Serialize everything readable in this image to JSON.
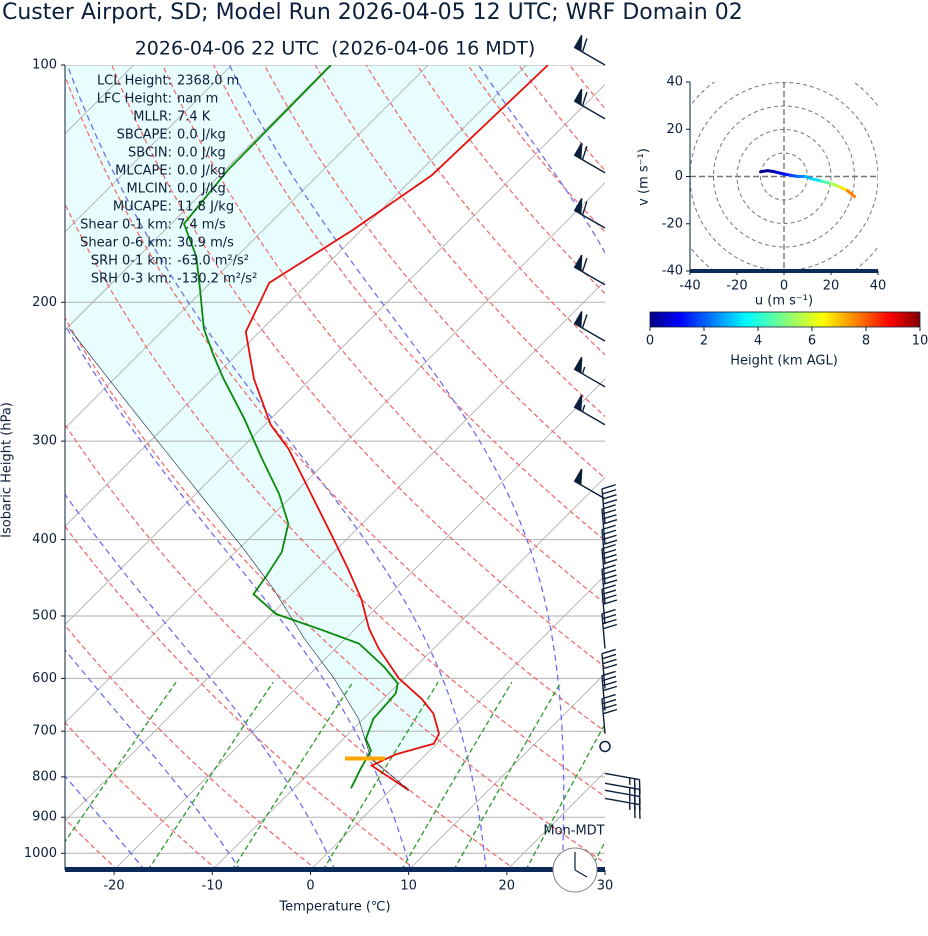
{
  "title": "Custer Airport, SD; Model Run 2026-04-05 12 UTC; WRF Domain 02",
  "chart_data": [
    {
      "type": "skewt",
      "subtitle": "2026-04-06 22 UTC  (2026-04-06 16 MDT)",
      "x_label": "Temperature (℃)",
      "y_label": "Isobaric Height (hPa)",
      "xlim": [
        -25,
        30
      ],
      "ylim": [
        1050,
        100
      ],
      "xticks": [
        -20,
        -10,
        0,
        10,
        20,
        30
      ],
      "yticks": [
        100,
        200,
        300,
        400,
        500,
        600,
        700,
        800,
        900,
        1000
      ],
      "log_y": true,
      "grid": true,
      "series": [
        {
          "color": "#e8100c",
          "line_width": 1.8,
          "pressure": [
            832,
            774,
            749,
            726,
            705,
            665,
            637,
            600,
            550,
            519,
            476,
            436,
            399,
            345,
            307,
            286,
            250,
            218,
            189,
            162,
            138,
            100
          ],
          "values": [
            1.9,
            -4.4,
            -3.1,
            -0.3,
            -0.8,
            -3.4,
            -6.1,
            -10.5,
            -15.6,
            -18.6,
            -22.4,
            -26.8,
            -31.4,
            -39.0,
            -45.1,
            -49.4,
            -55.8,
            -61.4,
            -64.0,
            -60.9,
            -58.4,
            -57.8
          ]
        },
        {
          "color": "#0a8a0a",
          "line_width": 1.8,
          "pressure": [
            827,
            781,
            741,
            716,
            675,
            627,
            609,
            580,
            542,
            522,
            497,
            469,
            446,
            415,
            382,
            350,
            316,
            281,
            250,
            233,
            216,
            193,
            175,
            159,
            136,
            100
          ],
          "values": [
            -4.2,
            -5.2,
            -6.0,
            -7.7,
            -9.0,
            -9.3,
            -10.1,
            -13.2,
            -18.1,
            -23.0,
            -29.6,
            -33.9,
            -34.4,
            -35.3,
            -37.5,
            -41.5,
            -46.8,
            -52.7,
            -58.9,
            -62.4,
            -66.0,
            -70.3,
            -74.1,
            -78.7,
            -79.7,
            -79.9
          ]
        },
        {
          "color": "#0b1f3a",
          "line_width": 0.6,
          "pressure": [
            832,
            758,
            675,
            600,
            534,
            462,
            411,
            355,
            307,
            265,
            216
          ],
          "values": [
            1.9,
            -5.2,
            -10.5,
            -17.1,
            -24.2,
            -32.4,
            -39.5,
            -48.7,
            -57.8,
            -67.0,
            -79.7
          ]
        }
      ],
      "lcl_marker": {
        "pressure": 758,
        "color": "#ffa500"
      },
      "wind": {
        "pressure": [
          100,
          117,
          137,
          161,
          190,
          224,
          256,
          286,
          355,
          382,
          405,
          430,
          455,
          483,
          512,
          550,
          618,
          659,
          705,
          732,
          792,
          815,
          832,
          852
        ],
        "speed": [
          60,
          60,
          60,
          60,
          60,
          60,
          55,
          55,
          50,
          40,
          40,
          40,
          40,
          40,
          40,
          40,
          40,
          40,
          40,
          0,
          25,
          25,
          25,
          25
        ],
        "direction": [
          300,
          300,
          300,
          300,
          300,
          300,
          300,
          300,
          300,
          355,
          355,
          355,
          355,
          355,
          355,
          355,
          355,
          355,
          355,
          0,
          100,
          100,
          100,
          100
        ]
      },
      "stats": [
        {
          "label": "LCL Height:",
          "value": "2368.0 m"
        },
        {
          "label": "LFC Height:",
          "value": "nan m"
        },
        {
          "label": "MLLR:",
          "value": "7.4 K"
        },
        {
          "label": "SBCAPE:",
          "value": "0.0 J/kg"
        },
        {
          "label": "SBCIN:",
          "value": "0.0 J/kg"
        },
        {
          "label": "MLCAPE:",
          "value": "0.0 J/kg"
        },
        {
          "label": "MLCIN:",
          "value": "0.0 J/kg"
        },
        {
          "label": "MUCAPE:",
          "value": "11.8 J/kg"
        },
        {
          "label": "Shear 0-1 km:",
          "value": "7.4 m/s"
        },
        {
          "label": "Shear 0-6 km:",
          "value": "30.9 m/s"
        },
        {
          "label": "SRH 0-1 km:",
          "value": "-63.0 m²/s²"
        },
        {
          "label": "SRH 0-3 km:",
          "value": "-130.2 m²/s²"
        }
      ],
      "time_label": "Mon-MDT"
    },
    {
      "type": "hodograph",
      "x_label": "u (m s⁻¹)",
      "y_label": "v (m s⁻¹)",
      "xlim": [
        -40,
        40
      ],
      "ylim": [
        -40,
        40
      ],
      "xticks": [
        -40,
        -20,
        0,
        20,
        40
      ],
      "yticks": [
        -40,
        -20,
        0,
        20,
        40
      ],
      "u": [
        -10,
        -7,
        -4,
        -2,
        0,
        3,
        6,
        9,
        12,
        16,
        20,
        24,
        27,
        30
      ],
      "v": [
        2,
        2.5,
        2,
        1.5,
        1,
        0.5,
        0,
        0,
        -1,
        -2,
        -3,
        -4.5,
        -6,
        -8.5
      ],
      "height": [
        0.1,
        0.3,
        0.6,
        1,
        1.5,
        2,
        2.5,
        3,
        3.5,
        4.5,
        5.5,
        6.5,
        7.5,
        8.2
      ],
      "colorbar": {
        "label": "Height (km AGL)",
        "lim": [
          0,
          10
        ],
        "ticks": [
          0,
          2,
          4,
          6,
          8,
          10
        ]
      }
    }
  ]
}
